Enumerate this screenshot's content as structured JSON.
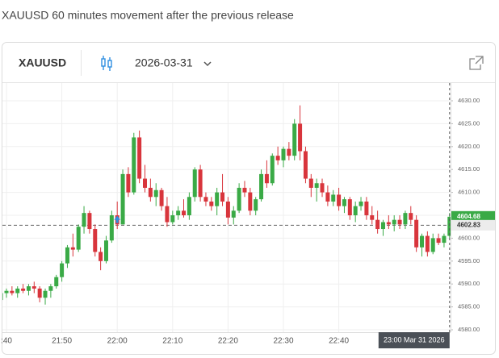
{
  "header": {
    "title": "XAUUSD 60 minutes movement after the previous release",
    "symbol": "XAUUSD",
    "date": "2026-03-31"
  },
  "chart_data": {
    "type": "candlestick",
    "x": [
      "21:39",
      "21:40",
      "21:41",
      "21:42",
      "21:43",
      "21:44",
      "21:45",
      "21:46",
      "21:47",
      "21:48",
      "21:49",
      "21:50",
      "21:51",
      "21:52",
      "21:53",
      "21:54",
      "21:55",
      "21:56",
      "21:57",
      "21:58",
      "21:59",
      "22:00",
      "22:01",
      "22:02",
      "22:03",
      "22:04",
      "22:05",
      "22:06",
      "22:07",
      "22:08",
      "22:09",
      "22:10",
      "22:11",
      "22:12",
      "22:13",
      "22:14",
      "22:15",
      "22:16",
      "22:17",
      "22:18",
      "22:19",
      "22:20",
      "22:21",
      "22:22",
      "22:23",
      "22:24",
      "22:25",
      "22:26",
      "22:27",
      "22:28",
      "22:29",
      "22:30",
      "22:31",
      "22:32",
      "22:33",
      "22:34",
      "22:35",
      "22:36",
      "22:37",
      "22:38",
      "22:39",
      "22:40",
      "22:41",
      "22:42",
      "22:43",
      "22:44",
      "22:45",
      "22:46",
      "22:47",
      "22:48",
      "22:49",
      "22:50",
      "22:51",
      "22:52",
      "22:53",
      "22:54",
      "22:55",
      "22:56",
      "22:57",
      "22:58",
      "22:59",
      "23:00"
    ],
    "open": [
      4586.5,
      4588,
      4588.5,
      4588,
      4589,
      4588.5,
      4589.5,
      4589,
      4587,
      4588.5,
      4589.5,
      4591.5,
      4594.5,
      4598,
      4597.5,
      4602.5,
      4605.5,
      4602,
      4597,
      4595,
      4599.5,
      4605,
      4603,
      4614,
      4610,
      4622,
      4613,
      4611,
      4609,
      4610.5,
      4607,
      4603.5,
      4605,
      4606,
      4605,
      4609,
      4615,
      4609,
      4608,
      4607,
      4610,
      4608,
      4604.5,
      4606,
      4611,
      4610,
      4606,
      4608.5,
      4614,
      4612,
      4618,
      4617,
      4619.5,
      4618,
      4625,
      4619,
      4613,
      4611,
      4612,
      4610,
      4608,
      4609.5,
      4607,
      4608.5,
      4605,
      4607,
      4608,
      4605,
      4604,
      4602,
      4603.5,
      4603,
      4604,
      4603,
      4605.5,
      4604,
      4598,
      4600.5,
      4597,
      4600,
      4599,
      4600.5
    ],
    "high": [
      4588,
      4589,
      4589.5,
      4589.5,
      4590,
      4590,
      4590.5,
      4589.5,
      4589,
      4590,
      4592,
      4595,
      4598.5,
      4601,
      4603,
      4607,
      4606,
      4603,
      4598,
      4600.5,
      4606,
      4608,
      4615,
      4615.5,
      4623,
      4623.5,
      4616,
      4613,
      4612,
      4611,
      4609,
      4606,
      4607,
      4608.5,
      4610,
      4615.5,
      4616,
      4610,
      4609,
      4611,
      4614,
      4609,
      4607,
      4612,
      4612.5,
      4611,
      4609,
      4615,
      4617,
      4618.5,
      4620,
      4620,
      4621,
      4626,
      4629,
      4620,
      4614,
      4613,
      4613,
      4611.5,
      4610.5,
      4611,
      4609,
      4609,
      4608,
      4609,
      4609,
      4607,
      4606,
      4604,
      4605,
      4605,
      4605,
      4606,
      4607,
      4605,
      4601,
      4601.5,
      4601,
      4601,
      4601,
      4605.5
    ],
    "low": [
      4584.5,
      4587,
      4587.5,
      4587,
      4588,
      4587.5,
      4588,
      4586,
      4585.5,
      4587,
      4589,
      4590.5,
      4593.5,
      4596,
      4597,
      4601,
      4601,
      4596,
      4593,
      4594.5,
      4599,
      4602,
      4603,
      4609,
      4609.5,
      4612,
      4610,
      4608,
      4607,
      4606,
      4602.5,
      4603,
      4604,
      4604.5,
      4604,
      4608,
      4608,
      4607,
      4606,
      4605,
      4607,
      4603,
      4603,
      4605.5,
      4609,
      4605,
      4605,
      4608,
      4611,
      4611.5,
      4616,
      4615.5,
      4617,
      4617,
      4617,
      4612,
      4609,
      4608,
      4609,
      4607,
      4607,
      4606,
      4605.5,
      4604,
      4603.5,
      4606,
      4604,
      4603,
      4601,
      4600.5,
      4602,
      4601.5,
      4602,
      4602,
      4603,
      4597,
      4596,
      4596,
      4596.5,
      4598.5,
      4598,
      4600
    ],
    "close": [
      4588,
      4588.5,
      4588,
      4589,
      4588.5,
      4589.5,
      4589,
      4587,
      4588.5,
      4589.5,
      4591.5,
      4594.5,
      4598,
      4597.5,
      4602.5,
      4605.5,
      4602,
      4597,
      4595,
      4599.5,
      4605,
      4603,
      4614,
      4610,
      4622,
      4613,
      4611,
      4609,
      4610.5,
      4607,
      4603.5,
      4605,
      4606,
      4605,
      4609,
      4615,
      4609,
      4608,
      4607,
      4610,
      4608,
      4604.5,
      4606,
      4611,
      4610,
      4606,
      4608.5,
      4614,
      4612,
      4618,
      4617,
      4619.5,
      4618,
      4625,
      4619,
      4613,
      4611,
      4612,
      4610,
      4608,
      4609.5,
      4607,
      4608.5,
      4605,
      4607,
      4608,
      4605,
      4604,
      4602,
      4603.5,
      4603,
      4604,
      4603,
      4605.5,
      4604,
      4598,
      4600.5,
      4597,
      4600,
      4599,
      4600.5,
      4604.68
    ],
    "up_color": "#3aaa46",
    "down_color": "#d8353c",
    "ylim": [
      4580,
      4632.5
    ],
    "yticks": [
      {
        "value": 4580,
        "label": "4580.00"
      },
      {
        "value": 4585,
        "label": "4585.00"
      },
      {
        "value": 4590,
        "label": "4590.00"
      },
      {
        "value": 4595,
        "label": "4595.00"
      },
      {
        "value": 4600,
        "label": "4600.00"
      },
      {
        "value": 4605,
        "label": "4605.00"
      },
      {
        "value": 4610,
        "label": "4610.00"
      },
      {
        "value": 4615,
        "label": "4615.00"
      },
      {
        "value": 4620,
        "label": "4620.00"
      },
      {
        "value": 4625,
        "label": "4625.00"
      },
      {
        "value": 4630,
        "label": "4630.00"
      }
    ],
    "xticks": [
      {
        "value": "21:40",
        "label": ":40"
      },
      "21:50",
      "22:00",
      "22:10",
      "22:20",
      "22:30",
      "22:40"
    ],
    "grid": true,
    "last_price": 4604.68,
    "price_line": 4602.83,
    "event_marker": {
      "x": "22:00",
      "value": 4604
    },
    "crosshair": {
      "x": "23:00",
      "label": "23:00 Mar 31 2026"
    }
  }
}
